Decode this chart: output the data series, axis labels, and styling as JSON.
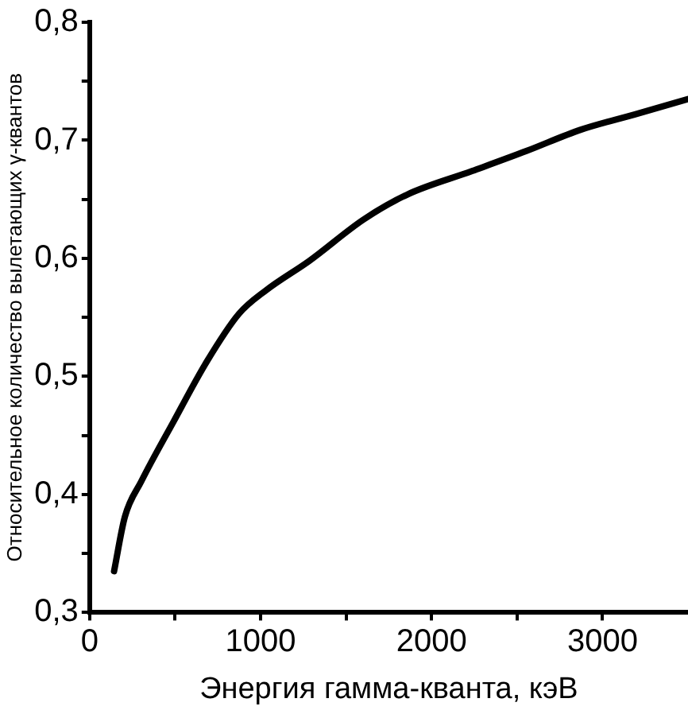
{
  "chart_data": {
    "type": "line",
    "xlabel": "Энергия гамма-кванта, кэВ",
    "ylabel": "Относительное количество вылетающих γ-квантов",
    "x": [
      143,
      206,
      302,
      492,
      683,
      873,
      1032,
      1286,
      1603,
      1857,
      2238,
      2556,
      2873,
      3190,
      3500
    ],
    "series": [
      {
        "color": "#000000",
        "values": [
          0.335,
          0.381,
          0.411,
          0.462,
          0.512,
          0.553,
          0.573,
          0.598,
          0.633,
          0.654,
          0.674,
          0.691,
          0.709,
          0.722,
          0.735
        ]
      }
    ],
    "xlim": [
      0,
      3500
    ],
    "xticks": [
      0,
      {
        "value": 500,
        "label": null
      },
      1000,
      {
        "value": 1500,
        "label": null
      },
      2000,
      {
        "value": 2500,
        "label": null
      },
      3000
    ],
    "ylim": [
      0.3,
      0.8
    ],
    "yticks": [
      {
        "value": 0.3,
        "label": "0,3"
      },
      {
        "value": 0.35,
        "label": null
      },
      {
        "value": 0.4,
        "label": "0,4"
      },
      {
        "value": 0.45,
        "label": null
      },
      {
        "value": 0.5,
        "label": "0,5"
      },
      {
        "value": 0.55,
        "label": null
      },
      {
        "value": 0.6,
        "label": "0,6"
      },
      {
        "value": 0.65,
        "label": null
      },
      {
        "value": 0.7,
        "label": "0,7"
      },
      {
        "value": 0.75,
        "label": null
      },
      {
        "value": 0.8,
        "label": "0,8"
      }
    ],
    "grid": false,
    "legend": false,
    "marker": "none",
    "line_style": "solid"
  }
}
